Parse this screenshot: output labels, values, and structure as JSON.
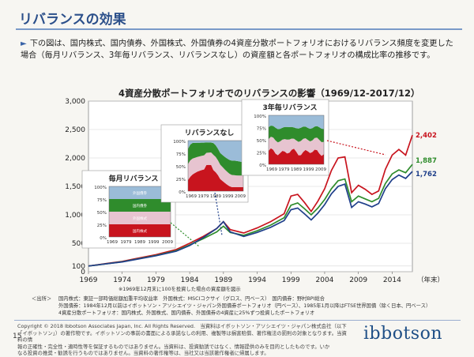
{
  "slide": {
    "title": "リバランスの効果",
    "bullet_mark": "►",
    "description": "下の図は、国内株式、国内債券、外国株式、外国債券の4資産分散ポートフォリオにおけるリバランス頻度を変更した場合（毎月リバランス、3年毎リバランス、リバランスなし）の資産額と各ポートフォリオの構成比率の推移です。",
    "page_number": "15",
    "logo": "ibbotson",
    "note": "※1969年12月末に100を投資した場合の資産額を図示",
    "source_label": "＜出所＞",
    "sources": [
      "国内株式：東証一部時価総額加重平均収益率　外国株式：MSCIコクサイ（グロス、円ベース）　国内債券：野村BPI総合",
      "外国債券：1984年12月以前はイボットソン・アソシエイツ・ジャパン外国債券ポートフォリオ（円ベース）、1985年1月以降はFTSE世界国債（除く日本、円ベース）",
      "4資産分散ポートフォリオ：国内株式、外国株式、国内債券、外国債券の4資産に25%ずつ投資したポートフォリオ"
    ],
    "copyright": [
      "Copyright © 2018 Ibbotson Associates Japan, Inc. All Rights Reserved.　当資料はイボットソン・アソシエイツ・ジャパン株式会社（以下",
      "「イボットソン」）の著作物です。イボットソンの事前の書面による承諾なしの利用、複製等は損害賠償、著作権法の罰則の対象となります。当資料の情",
      "報の正確性・完全性・適時性等を保証するものではありません。当資料は、投資勧誘ではなく、情報提供のみを目的としたものです。いか",
      "なる投資の推奨・勧誘を行うものではありません。当資料の著作権等は、当社又は当該著作権者に帰属します。"
    ]
  },
  "chart_data": {
    "type": "line",
    "title": "4資産分散ポートフォリオでのリバランスの影響（1969/12-2017/12）",
    "xlabel": "（年末）",
    "x_ticks": [
      "1969",
      "1974",
      "1979",
      "1984",
      "1989",
      "1994",
      "1999",
      "2004",
      "2009",
      "2014"
    ],
    "y_ticks": [
      "3,000",
      "2,500",
      "2,000",
      "1,500",
      "1,000",
      "500",
      "100",
      "0"
    ],
    "ylim": [
      0,
      3000
    ],
    "xlim": [
      1969,
      2017
    ],
    "grid": true,
    "series": [
      {
        "name": "3年毎リバランス",
        "color": "#c8141e",
        "end_label": "2,402",
        "x": [
          1969,
          1972,
          1974,
          1976,
          1979,
          1982,
          1984,
          1986,
          1987,
          1988,
          1989,
          1990,
          1992,
          1994,
          1996,
          1998,
          1999,
          2000,
          2001,
          2002,
          2003,
          2004,
          2005,
          2006,
          2007,
          2008,
          2009,
          2010,
          2011,
          2012,
          2013,
          2014,
          2015,
          2016,
          2017
        ],
        "values": [
          100,
          150,
          180,
          230,
          300,
          390,
          500,
          620,
          690,
          760,
          880,
          740,
          680,
          770,
          880,
          1020,
          1330,
          1360,
          1220,
          1060,
          1240,
          1460,
          1780,
          2000,
          2020,
          1390,
          1520,
          1450,
          1360,
          1420,
          1800,
          2050,
          2150,
          2050,
          2402
        ]
      },
      {
        "name": "毎月リバランス",
        "color": "#2f8c2c",
        "end_label": "1,887",
        "x": [
          1969,
          1972,
          1974,
          1976,
          1979,
          1982,
          1984,
          1986,
          1987,
          1988,
          1989,
          1990,
          1992,
          1994,
          1996,
          1998,
          1999,
          2000,
          2001,
          2002,
          2003,
          2004,
          2005,
          2006,
          2007,
          2008,
          2009,
          2010,
          2011,
          2012,
          2013,
          2014,
          2015,
          2016,
          2017
        ],
        "values": [
          100,
          145,
          175,
          220,
          285,
          370,
          470,
          580,
          640,
          700,
          800,
          690,
          640,
          720,
          820,
          950,
          1170,
          1210,
          1110,
          1000,
          1120,
          1270,
          1460,
          1600,
          1630,
          1230,
          1330,
          1280,
          1230,
          1290,
          1550,
          1720,
          1790,
          1740,
          1887
        ]
      },
      {
        "name": "リバランスなし",
        "color": "#1f3f8a",
        "end_label": "1,762",
        "x": [
          1969,
          1972,
          1974,
          1976,
          1979,
          1982,
          1984,
          1986,
          1987,
          1988,
          1989,
          1990,
          1992,
          1994,
          1996,
          1998,
          1999,
          2000,
          2001,
          2002,
          2003,
          2004,
          2005,
          2006,
          2007,
          2008,
          2009,
          2010,
          2011,
          2012,
          2013,
          2014,
          2015,
          2016,
          2017
        ],
        "values": [
          100,
          145,
          172,
          215,
          280,
          360,
          460,
          600,
          680,
          760,
          880,
          700,
          620,
          690,
          780,
          900,
          1090,
          1120,
          1020,
          910,
          1030,
          1180,
          1370,
          1500,
          1540,
          1130,
          1230,
          1190,
          1140,
          1200,
          1460,
          1620,
          1700,
          1640,
          1762
        ]
      }
    ],
    "insets": [
      {
        "title": "毎月リバランス",
        "y_ticks": [
          "100%",
          "75%",
          "50%",
          "25%",
          "0%"
        ],
        "x_ticks": [
          "1969",
          "1979",
          "1989",
          "1999",
          "2009"
        ],
        "layers": [
          {
            "label": "国内株式",
            "share": 25,
            "color": "#c8141e"
          },
          {
            "label": "外国株式",
            "share": 25,
            "color": "#e7c4d0"
          },
          {
            "label": "国内債券",
            "share": 25,
            "color": "#2f8c2c"
          },
          {
            "label": "外国債券",
            "share": 25,
            "color": "#9bbcd8"
          }
        ]
      },
      {
        "title": "リバランスなし",
        "y_ticks": [
          "100%",
          "75%",
          "50%",
          "25%",
          "0%"
        ],
        "x_ticks": [
          "1969",
          "1979",
          "1989",
          "1999",
          "2009"
        ]
      },
      {
        "title": "3年毎リバランス",
        "y_ticks": [
          "100%",
          "75%",
          "50%",
          "25%",
          "0%"
        ],
        "x_ticks": [
          "1969",
          "1979",
          "1989",
          "1999",
          "2009"
        ]
      }
    ],
    "colors": {
      "red": "#c8141e",
      "green": "#2f8c2c",
      "blue": "#1f3f8a",
      "light_blue": "#9bbcd8",
      "pink": "#e7c4d0"
    }
  }
}
